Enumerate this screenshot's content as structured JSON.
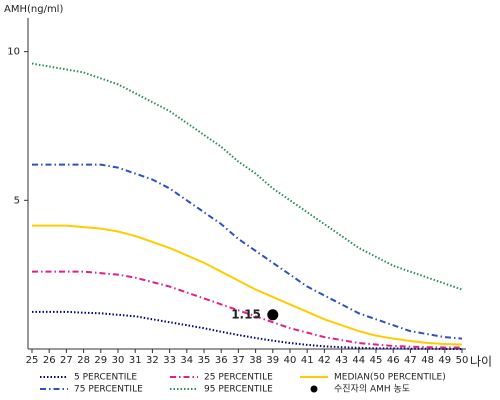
{
  "chart_data": {
    "type": "line",
    "y_label": "AMH(ng/ml)",
    "x_label": "나이",
    "x": [
      25,
      26,
      27,
      28,
      29,
      30,
      31,
      32,
      33,
      34,
      35,
      36,
      37,
      38,
      39,
      40,
      41,
      42,
      43,
      44,
      45,
      46,
      47,
      48,
      49,
      50
    ],
    "xlim": [
      25,
      50
    ],
    "xticks": [
      25,
      26,
      27,
      28,
      29,
      30,
      31,
      32,
      33,
      34,
      35,
      36,
      37,
      38,
      39,
      40,
      41,
      42,
      43,
      44,
      45,
      46,
      47,
      48,
      49,
      50
    ],
    "ylim": [
      0,
      11.4
    ],
    "yticks": [
      5,
      10
    ],
    "series": [
      {
        "name": "5 PERCENTILE",
        "color": "#000080",
        "dash": "dotted",
        "values": [
          1.25,
          1.25,
          1.25,
          1.22,
          1.2,
          1.15,
          1.1,
          1.0,
          0.9,
          0.8,
          0.7,
          0.58,
          0.47,
          0.37,
          0.28,
          0.2,
          0.14,
          0.09,
          0.06,
          0.04,
          0.02,
          0.02,
          0.01,
          0.01,
          0,
          0
        ]
      },
      {
        "name": "25 PERCENTILE",
        "color": "#e0208a",
        "dash": "dashdot",
        "values": [
          2.6,
          2.6,
          2.6,
          2.6,
          2.55,
          2.5,
          2.4,
          2.25,
          2.1,
          1.9,
          1.7,
          1.5,
          1.3,
          1.1,
          0.9,
          0.7,
          0.55,
          0.4,
          0.3,
          0.2,
          0.15,
          0.1,
          0.08,
          0.06,
          0.05,
          0.05
        ]
      },
      {
        "name": "MEDIAN(50 PERCENTILE)",
        "color": "#ffcc00",
        "dash": "solid",
        "values": [
          4.15,
          4.15,
          4.15,
          4.1,
          4.05,
          3.95,
          3.8,
          3.6,
          3.4,
          3.15,
          2.9,
          2.6,
          2.3,
          2.0,
          1.75,
          1.5,
          1.25,
          1.0,
          0.8,
          0.6,
          0.45,
          0.35,
          0.27,
          0.2,
          0.17,
          0.15
        ]
      },
      {
        "name": "75 PERCENTILE",
        "color": "#3050c0",
        "dash": "dashdot",
        "values": [
          6.2,
          6.2,
          6.2,
          6.2,
          6.2,
          6.1,
          5.9,
          5.7,
          5.4,
          5.0,
          4.6,
          4.2,
          3.7,
          3.3,
          2.9,
          2.5,
          2.1,
          1.8,
          1.5,
          1.2,
          1.0,
          0.8,
          0.6,
          0.5,
          0.4,
          0.35
        ]
      },
      {
        "name": "95 PERCENTILE",
        "color": "#2e8b57",
        "dash": "dotted",
        "values": [
          9.6,
          9.5,
          9.4,
          9.3,
          9.1,
          8.9,
          8.6,
          8.3,
          8.0,
          7.6,
          7.2,
          6.8,
          6.3,
          5.9,
          5.4,
          5.0,
          4.6,
          4.2,
          3.8,
          3.4,
          3.1,
          2.8,
          2.6,
          2.4,
          2.2,
          2.0
        ]
      }
    ],
    "point": {
      "name": "수진자의 AMH 농도",
      "color": "#000000",
      "x": 39,
      "y": 1.15
    }
  }
}
